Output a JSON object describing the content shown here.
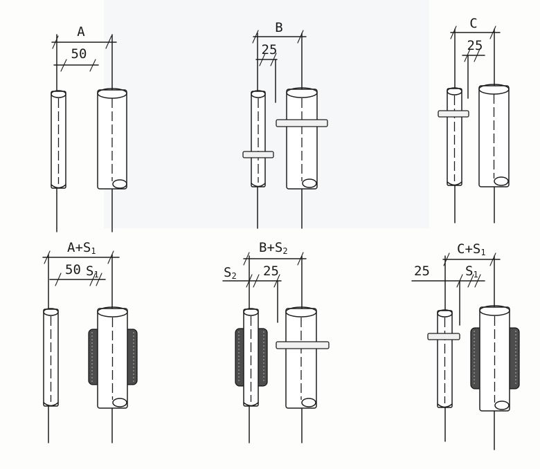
{
  "labels": {
    "top_a_total": "A",
    "top_a_gap": "50",
    "top_b_total": "B",
    "top_b_gap": "25",
    "top_c_total": "C",
    "top_c_gap": "25",
    "bottom_a_total_base": "A+S",
    "bottom_a_total_sub": "1",
    "bottom_a_gap": "50",
    "bottom_a_s_base": "S",
    "bottom_a_s_sub": "1",
    "bottom_b_total_base": "B+S",
    "bottom_b_total_sub": "2",
    "bottom_b_s_base": "S",
    "bottom_b_s_sub": "2",
    "bottom_b_gap": "25",
    "bottom_c_total_base": "C+S",
    "bottom_c_total_sub": "1",
    "bottom_c_gap": "25",
    "bottom_c_s_base": "S",
    "bottom_c_s_sub": "1"
  },
  "colors": {
    "ink": "#1d1d1d",
    "insulation": "#4d4d4d",
    "paper": "#fdfdfb"
  }
}
